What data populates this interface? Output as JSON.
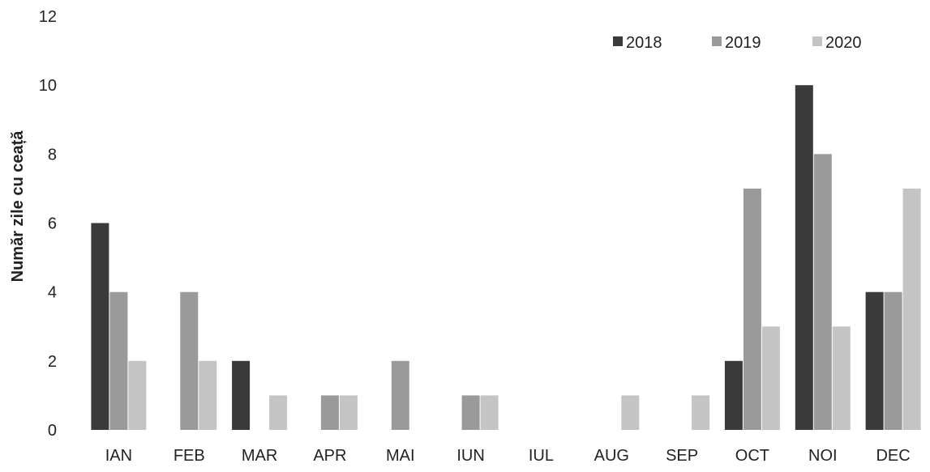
{
  "chart_data": {
    "type": "bar",
    "title": "",
    "xlabel": "",
    "ylabel": "Număr zile cu ceață",
    "ylim": [
      0,
      12
    ],
    "yticks": [
      0,
      2,
      4,
      6,
      8,
      10,
      12
    ],
    "grid": false,
    "legend_position": "top-right",
    "categories": [
      "IAN",
      "FEB",
      "MAR",
      "APR",
      "MAI",
      "IUN",
      "IUL",
      "AUG",
      "SEP",
      "OCT",
      "NOI",
      "DEC"
    ],
    "series": [
      {
        "name": "2018",
        "color": "#3a3a3a",
        "values": [
          6,
          0,
          2,
          0,
          0,
          0,
          0,
          0,
          0,
          2,
          10,
          4
        ]
      },
      {
        "name": "2019",
        "color": "#9a9a9a",
        "values": [
          4,
          4,
          0,
          1,
          2,
          1,
          0,
          0,
          0,
          7,
          8,
          4
        ]
      },
      {
        "name": "2020",
        "color": "#c4c4c4",
        "values": [
          2,
          2,
          1,
          1,
          0,
          1,
          0,
          1,
          1,
          3,
          3,
          7
        ]
      }
    ]
  }
}
